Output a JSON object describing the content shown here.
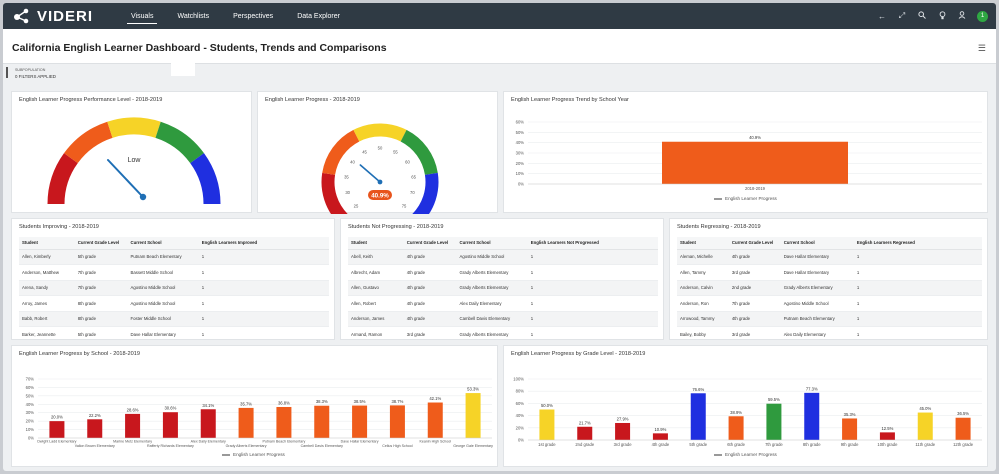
{
  "app": {
    "name": "VIDERI",
    "nav": [
      {
        "label": "Visuals",
        "active": true
      },
      {
        "label": "Watchlists",
        "active": false
      },
      {
        "label": "Perspectives",
        "active": false
      },
      {
        "label": "Data Explorer",
        "active": false
      }
    ],
    "toolbar_icons": [
      "back-arrow-icon",
      "expand-icon",
      "search-icon",
      "bulb-icon",
      "user-icon"
    ],
    "user_initial": "1"
  },
  "page": {
    "title": "California English Learner Dashboard - Students, Trends and Comparisons"
  },
  "filters": {
    "label": "SUBPOPULATION",
    "count_text": "0 FILTERS APPLIED"
  },
  "gauge1": {
    "title": "English Learner Progress Performance Level - 2018-2019",
    "center_label": "Low",
    "level": "Low",
    "segment_colors": [
      "#c8171d",
      "#ef5c1b",
      "#f6d327",
      "#2f9a3e",
      "#1f2fe0"
    ]
  },
  "gauge2": {
    "title": "English Learner Progress - 2018-2019",
    "value": 40.9,
    "value_label": "40.9%",
    "min": 25,
    "max": 75,
    "ticks": [
      "25",
      "30",
      "35",
      "40",
      "45",
      "50",
      "55",
      "60",
      "65",
      "70",
      "75"
    ],
    "segment_colors": [
      "#c8171d",
      "#ef5c1b",
      "#f6d327",
      "#2f9a3e",
      "#1f2fe0"
    ]
  },
  "trend": {
    "title": "English Learner Progress Trend by School Year",
    "legend": "English Learner Progress",
    "chart_data": {
      "type": "bar",
      "categories": [
        "2018-2019"
      ],
      "values": [
        40.9
      ],
      "data_labels": [
        "40.9%"
      ],
      "ylim": [
        0,
        60
      ],
      "yticks": [
        "0%",
        "10%",
        "20%",
        "30%",
        "40%",
        "50%",
        "60%"
      ],
      "series": [
        {
          "name": "English Learner Progress",
          "values": [
            40.9
          ]
        }
      ],
      "color": "#ef5c1b",
      "legend": "bottom"
    }
  },
  "tables": [
    {
      "title": "Students Improving - 2018-2019",
      "columns": [
        "Student",
        "Current Grade Level",
        "Current School",
        "English Learners Improved"
      ],
      "rows": [
        [
          "Allen, Kimberly",
          "5th grade",
          "Putnam Beach Elementary",
          "1"
        ],
        [
          "Anderson, Matthew",
          "7th grade",
          "Bassett Middle School",
          "1"
        ],
        [
          "Arena, Sandy",
          "7th grade",
          "Agostino Middle School",
          "1"
        ],
        [
          "Arroy, James",
          "8th grade",
          "Agostino Middle School",
          "1"
        ],
        [
          "Babb, Robert",
          "8th grade",
          "Foster Middle School",
          "1"
        ],
        [
          "Barker, Jeannette",
          "5th grade",
          "Dave Hallar Elementary",
          "1"
        ]
      ]
    },
    {
      "title": "Students Not Progressing - 2018-2019",
      "columns": [
        "Student",
        "Current Grade Level",
        "Current School",
        "English Learners Not Progressed"
      ],
      "rows": [
        [
          "Abell, Keith",
          "4th grade",
          "Agostino Middle School",
          "1"
        ],
        [
          "Albrecht, Adam",
          "4th grade",
          "Grady Alberts Elementary",
          "1"
        ],
        [
          "Allen, Gustavo",
          "4th grade",
          "Grady Alberts Elementary",
          "1"
        ],
        [
          "Allen, Robert",
          "4th grade",
          "Alex Daily Elementary",
          "1"
        ],
        [
          "Anderson, James",
          "4th grade",
          "Cambell Davis Elementary",
          "1"
        ],
        [
          "Armand, Ramon",
          "3rd grade",
          "Grady Alberts Elementary",
          "1"
        ]
      ]
    },
    {
      "title": "Students Regressing - 2018-2019",
      "columns": [
        "Student",
        "Current Grade Level",
        "Current School",
        "English Learners Regressed"
      ],
      "rows": [
        [
          "Aleman, Michelle",
          "4th grade",
          "Dave Hallar Elementary",
          "1"
        ],
        [
          "Allen, Tammy",
          "3rd grade",
          "Dave Hallar Elementary",
          "1"
        ],
        [
          "Anderson, Calvin",
          "2nd grade",
          "Grady Alberts Elementary",
          "1"
        ],
        [
          "Anderson, Ron",
          "7th grade",
          "Agostino Middle School",
          "1"
        ],
        [
          "Arrowood, Tammy",
          "4th grade",
          "Putnam Beach Elementary",
          "1"
        ],
        [
          "Bailey, Bobby",
          "3rd grade",
          "Alex Daily Elementary",
          "1"
        ]
      ]
    }
  ],
  "by_school": {
    "title": "English Learner Progress by School - 2018-2019",
    "legend": "English Learner Progress",
    "chart_data": {
      "type": "bar",
      "categories": [
        "Dwight Ladd Elementary",
        "Vallon Brown Elementary",
        "Marine Metz Elementary",
        "Rafferty Richards Elementary",
        "Alex Daily Elementary",
        "Grady Alberts Elementary",
        "Putnam Beach Elementary",
        "Cambell Davis Elementary",
        "Dave Hallar Elementary",
        "Cellus High School",
        "Keanin High School",
        "George Gale Elementary"
      ],
      "values": [
        20.0,
        22.2,
        28.6,
        30.6,
        34.1,
        35.7,
        36.8,
        38.3,
        38.5,
        38.7,
        42.1,
        53.3
      ],
      "data_labels": [
        "20.0%",
        "22.2%",
        "28.6%",
        "30.6%",
        "34.1%",
        "35.7%",
        "36.8%",
        "38.3%",
        "38.5%",
        "38.7%",
        "42.1%",
        "53.3%"
      ],
      "colors": [
        "#c8171d",
        "#c8171d",
        "#c8171d",
        "#c8171d",
        "#c8171d",
        "#ef5c1b",
        "#ef5c1b",
        "#ef5c1b",
        "#ef5c1b",
        "#ef5c1b",
        "#ef5c1b",
        "#f6d327"
      ],
      "ylim": [
        0,
        70
      ],
      "yticks": [
        "0%",
        "10%",
        "20%",
        "30%",
        "40%",
        "50%",
        "60%",
        "70%"
      ],
      "series": [
        {
          "name": "English Learner Progress",
          "values": [
            20.0,
            22.2,
            28.6,
            30.6,
            34.1,
            35.7,
            36.8,
            38.3,
            38.5,
            38.7,
            42.1,
            53.3
          ]
        }
      ],
      "legend": "bottom"
    }
  },
  "by_grade": {
    "title": "English Learner Progress by Grade Level - 2018-2019",
    "legend": "English Learner Progress",
    "chart_data": {
      "type": "bar",
      "categories": [
        "1st grade",
        "2nd grade",
        "3rd grade",
        "4th grade",
        "5th grade",
        "6th grade",
        "7th grade",
        "8th grade",
        "9th grade",
        "10th grade",
        "11th grade",
        "12th grade"
      ],
      "values": [
        50.0,
        21.7,
        27.9,
        10.9,
        76.6,
        38.9,
        59.5,
        77.3,
        35.3,
        12.5,
        45.0,
        36.5
      ],
      "data_labels": [
        "50.0%",
        "21.7%",
        "27.9%",
        "10.9%",
        "76.6%",
        "38.9%",
        "59.5%",
        "77.3%",
        "35.3%",
        "12.5%",
        "45.0%",
        "36.5%"
      ],
      "colors": [
        "#f6d327",
        "#c8171d",
        "#c8171d",
        "#c8171d",
        "#1f2fe0",
        "#ef5c1b",
        "#2f9a3e",
        "#1f2fe0",
        "#ef5c1b",
        "#c8171d",
        "#f6d327",
        "#ef5c1b"
      ],
      "ylim": [
        0,
        100
      ],
      "yticks": [
        "0%",
        "20%",
        "40%",
        "60%",
        "80%",
        "100%"
      ],
      "series": [
        {
          "name": "English Learner Progress",
          "values": [
            50.0,
            21.7,
            27.9,
            10.9,
            76.6,
            38.9,
            59.5,
            77.3,
            35.3,
            12.5,
            45.0,
            36.5
          ]
        }
      ],
      "legend": "bottom"
    }
  }
}
